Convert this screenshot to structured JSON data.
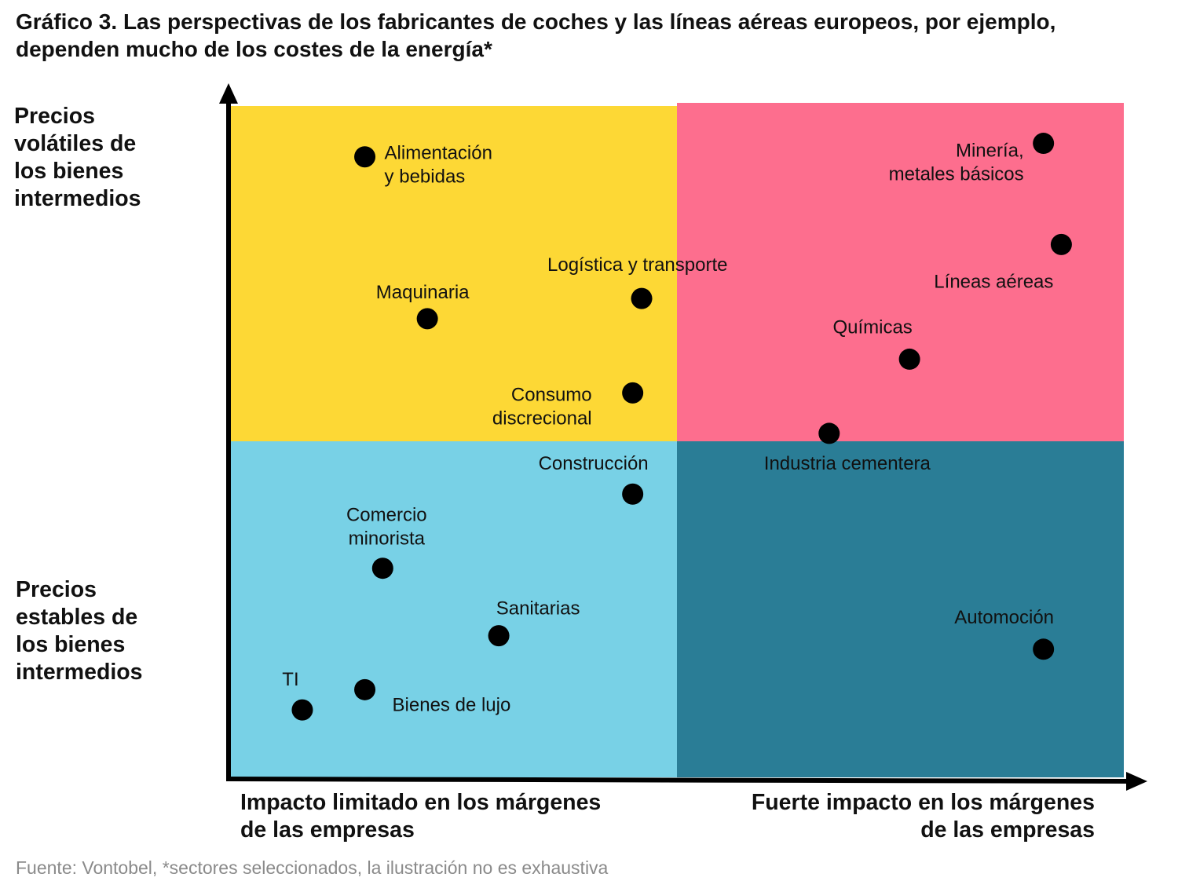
{
  "title": {
    "line1": "Gráfico 3. Las perspectivas de los fabricantes de coches y las líneas aéreas europeos, por ejemplo,",
    "line2": "dependen mucho de los costes de la energía*"
  },
  "y_axis": {
    "top_label": [
      "Precios",
      "volátiles de",
      "los bienes",
      "intermedios"
    ],
    "bottom_label": [
      "Precios",
      "estables de",
      "los bienes",
      "intermedios"
    ]
  },
  "x_axis": {
    "left_label": [
      "Impacto limitado en los márgenes",
      "de las empresas"
    ],
    "right_label": [
      "Fuerte impacto en los márgenes",
      "de las empresas"
    ]
  },
  "quadrant_colors": {
    "top_left": "#fdd835",
    "top_right": "#fd6e8e",
    "bottom_left": "#78d1e6",
    "bottom_right": "#2a7d96"
  },
  "sectors": [
    {
      "label": [
        "Alimentación",
        "y bebidas"
      ],
      "impact": 0.15,
      "volatility": 0.92
    },
    {
      "label": [
        "Maquinaria"
      ],
      "impact": 0.22,
      "volatility": 0.68
    },
    {
      "label": [
        "Logística y transporte"
      ],
      "impact": 0.46,
      "volatility": 0.71
    },
    {
      "label": [
        "Consumo",
        "discrecional"
      ],
      "impact": 0.45,
      "volatility": 0.57
    },
    {
      "label": [
        "Minería,",
        "metales básicos"
      ],
      "impact": 0.91,
      "volatility": 0.94
    },
    {
      "label": [
        "Líneas aéreas"
      ],
      "impact": 0.93,
      "volatility": 0.79
    },
    {
      "label": [
        "Químicas"
      ],
      "impact": 0.76,
      "volatility": 0.62
    },
    {
      "label": [
        "Industria cementera"
      ],
      "impact": 0.67,
      "volatility": 0.51
    },
    {
      "label": [
        "Construcción"
      ],
      "impact": 0.45,
      "volatility": 0.42
    },
    {
      "label": [
        "Comercio",
        "minorista"
      ],
      "impact": 0.17,
      "volatility": 0.31
    },
    {
      "label": [
        "Sanitarias"
      ],
      "impact": 0.3,
      "volatility": 0.21
    },
    {
      "label": [
        "Automoción"
      ],
      "impact": 0.91,
      "volatility": 0.19
    },
    {
      "label": [
        "TI"
      ],
      "impact": 0.08,
      "volatility": 0.1
    },
    {
      "label": [
        "Bienes de lujo"
      ],
      "impact": 0.15,
      "volatility": 0.13
    }
  ],
  "footnote": "Fuente: Vontobel, *sectores seleccionados, la ilustración no es exhaustiva"
}
